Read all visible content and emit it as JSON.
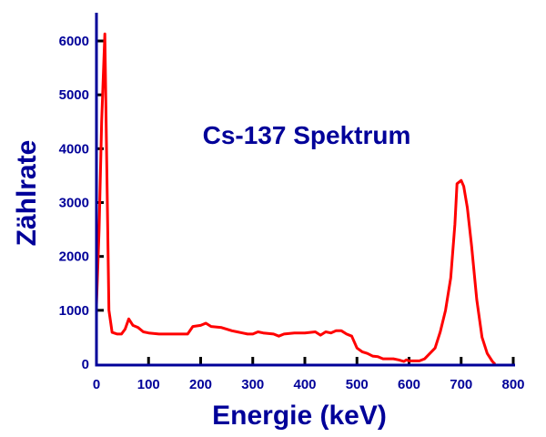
{
  "chart_data": {
    "type": "line",
    "title": "Cs-137 Spektrum",
    "xlabel": "Energie (keV)",
    "ylabel": "Zählrate",
    "xlim": [
      0,
      800
    ],
    "ylim": [
      0,
      6000
    ],
    "xticks": [
      "0",
      "100",
      "200",
      "300",
      "400",
      "500",
      "600",
      "700",
      "800"
    ],
    "yticks": [
      "0",
      "1000",
      "2000",
      "3000",
      "4000",
      "5000",
      "6000"
    ],
    "grid": false,
    "series": [
      {
        "name": "Cs-137",
        "color": "#ff0000",
        "x": [
          0,
          5,
          10,
          16,
          20,
          24,
          30,
          40,
          48,
          55,
          62,
          70,
          80,
          90,
          100,
          120,
          140,
          160,
          175,
          185,
          200,
          210,
          220,
          240,
          260,
          270,
          280,
          290,
          300,
          310,
          320,
          340,
          350,
          360,
          380,
          400,
          420,
          430,
          440,
          450,
          460,
          470,
          480,
          490,
          500,
          510,
          520,
          530,
          540,
          550,
          570,
          580,
          590,
          595,
          600,
          620,
          630,
          640,
          650,
          660,
          670,
          680,
          688,
          692,
          700,
          705,
          712,
          720,
          730,
          740,
          750,
          760,
          765
        ],
        "y": [
          1100,
          2500,
          4500,
          6130,
          3500,
          1000,
          590,
          560,
          560,
          650,
          840,
          720,
          680,
          600,
          580,
          560,
          560,
          560,
          560,
          700,
          720,
          760,
          700,
          680,
          620,
          600,
          580,
          560,
          560,
          600,
          580,
          560,
          520,
          560,
          580,
          580,
          600,
          540,
          600,
          580,
          620,
          620,
          560,
          520,
          300,
          230,
          200,
          150,
          140,
          100,
          100,
          80,
          50,
          80,
          60,
          60,
          100,
          200,
          300,
          600,
          1000,
          1600,
          2600,
          3350,
          3410,
          3300,
          2900,
          2200,
          1200,
          500,
          200,
          50,
          0
        ]
      }
    ]
  },
  "colors": {
    "axis": "#000099",
    "text": "#000099",
    "tick": "#000000",
    "line": "#ff0000"
  }
}
